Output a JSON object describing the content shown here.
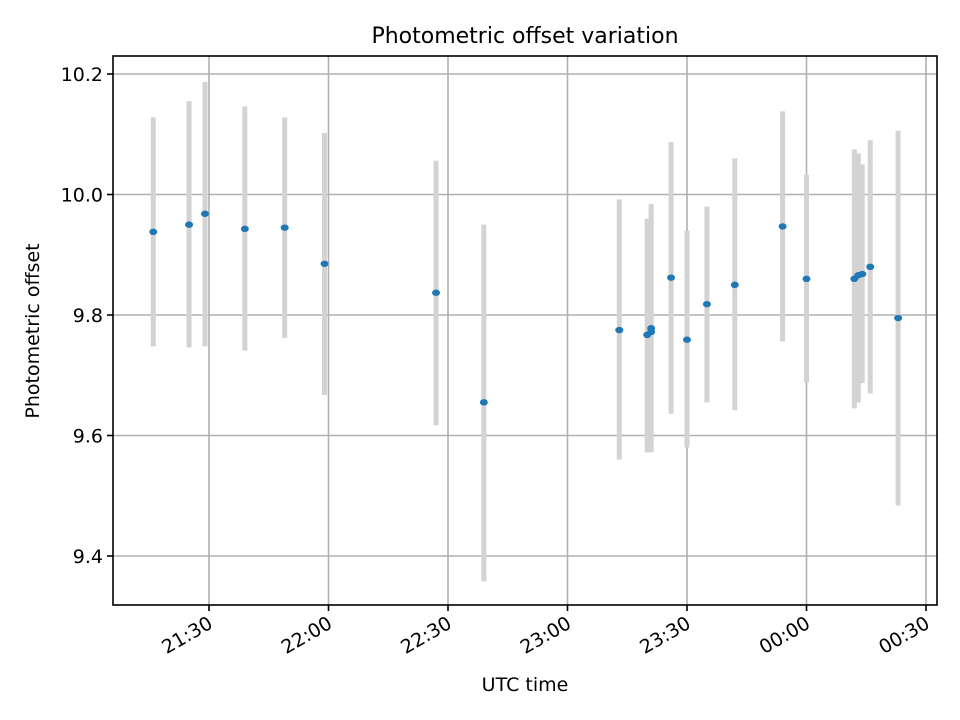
{
  "chart_data": {
    "type": "scatter",
    "title": "Photometric offset variation",
    "xlabel": "UTC time",
    "ylabel": "Photometric offset",
    "x_ticks": [
      "21:30",
      "22:00",
      "22:30",
      "23:00",
      "23:30",
      "00:00",
      "00:30"
    ],
    "y_ticks": [
      "9.4",
      "9.6",
      "9.8",
      "10.0",
      "10.2"
    ],
    "grid": true,
    "colors": {
      "points": "#1f77b4",
      "error_bars": "#d3d3d3",
      "grid": "#b0b0b0"
    },
    "series": [
      {
        "points": [
          {
            "x": "21:16",
            "y": 9.938,
            "yerr_low": 9.748,
            "yerr_high": 10.128
          },
          {
            "x": "21:25",
            "y": 9.95,
            "yerr_low": 9.746,
            "yerr_high": 10.155
          },
          {
            "x": "21:29",
            "y": 9.968,
            "yerr_low": 9.748,
            "yerr_high": 10.187
          },
          {
            "x": "21:39",
            "y": 9.943,
            "yerr_low": 9.741,
            "yerr_high": 10.146
          },
          {
            "x": "21:49",
            "y": 9.945,
            "yerr_low": 9.762,
            "yerr_high": 10.128
          },
          {
            "x": "21:59",
            "y": 9.885,
            "yerr_low": 9.667,
            "yerr_high": 10.102
          },
          {
            "x": "22:27",
            "y": 9.837,
            "yerr_low": 9.617,
            "yerr_high": 10.056
          },
          {
            "x": "22:39",
            "y": 9.655,
            "yerr_low": 9.358,
            "yerr_high": 9.95
          },
          {
            "x": "23:13",
            "y": 9.775,
            "yerr_low": 9.56,
            "yerr_high": 9.992
          },
          {
            "x": "23:20",
            "y": 9.767,
            "yerr_low": 9.572,
            "yerr_high": 9.96
          },
          {
            "x": "23:21",
            "y": 9.772,
            "yerr_low": 9.574,
            "yerr_high": 9.975
          },
          {
            "x": "23:21",
            "y": 9.778,
            "yerr_low": 9.572,
            "yerr_high": 9.984
          },
          {
            "x": "23:26",
            "y": 9.862,
            "yerr_low": 9.636,
            "yerr_high": 10.087
          },
          {
            "x": "23:30",
            "y": 9.759,
            "yerr_low": 9.58,
            "yerr_high": 9.94
          },
          {
            "x": "23:35",
            "y": 9.818,
            "yerr_low": 9.655,
            "yerr_high": 9.98
          },
          {
            "x": "23:42",
            "y": 9.85,
            "yerr_low": 9.642,
            "yerr_high": 10.06
          },
          {
            "x": "23:54",
            "y": 9.947,
            "yerr_low": 9.756,
            "yerr_high": 10.138
          },
          {
            "x": "00:00",
            "y": 9.86,
            "yerr_low": 9.688,
            "yerr_high": 10.033
          },
          {
            "x": "00:12",
            "y": 9.86,
            "yerr_low": 9.645,
            "yerr_high": 10.075
          },
          {
            "x": "00:13",
            "y": 9.866,
            "yerr_low": 9.655,
            "yerr_high": 10.068
          },
          {
            "x": "00:14",
            "y": 9.868,
            "yerr_low": 9.687,
            "yerr_high": 10.05
          },
          {
            "x": "00:16",
            "y": 9.88,
            "yerr_low": 9.67,
            "yerr_high": 10.09
          },
          {
            "x": "00:23",
            "y": 9.795,
            "yerr_low": 9.484,
            "yerr_high": 10.106
          }
        ]
      }
    ]
  }
}
